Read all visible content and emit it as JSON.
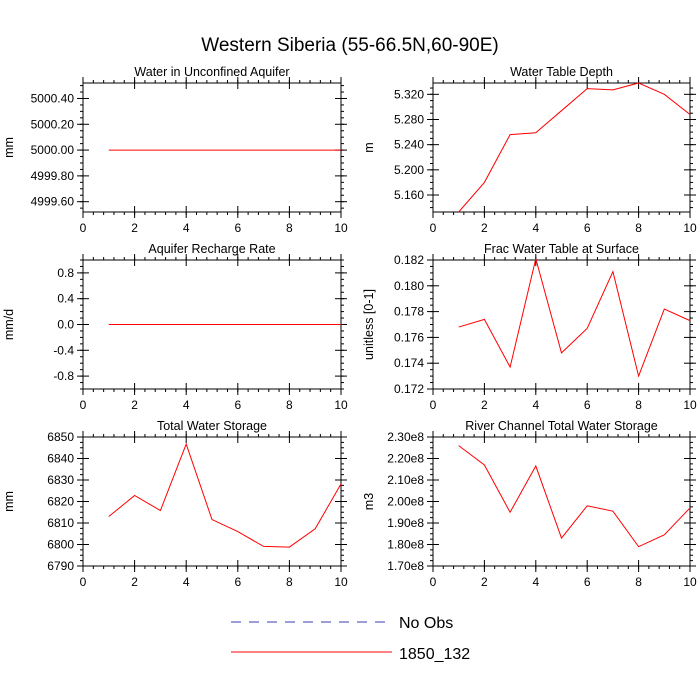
{
  "title": "Western Siberia (55-66.5N,60-90E)",
  "colors": {
    "series": "#ff0000",
    "obs": "#3b3bb0",
    "axis": "#000000"
  },
  "legend": [
    {
      "label": "No Obs",
      "style": "dashed",
      "color": "#3b3bb0"
    },
    {
      "label": "1850_132",
      "style": "solid",
      "color": "#ff0000"
    }
  ],
  "chart_data": [
    {
      "type": "line",
      "title": "Water in Unconfined Aquifer",
      "ylabel": "mm",
      "x": [
        1,
        2,
        3,
        4,
        5,
        6,
        7,
        8,
        9,
        10
      ],
      "series": [
        {
          "name": "1850_132",
          "values": [
            5000,
            5000,
            5000,
            5000,
            5000,
            5000,
            5000,
            5000,
            5000,
            5000
          ]
        }
      ],
      "xlim": [
        0,
        10
      ],
      "ylim": [
        4999.52,
        5000.52
      ],
      "xticks": [
        0,
        2,
        4,
        6,
        8,
        10
      ],
      "xticklabels": [
        "0",
        "2",
        "4",
        "6",
        "8",
        "10"
      ],
      "yticks": [
        4999.6,
        4999.8,
        5000.0,
        5000.2,
        5000.4
      ],
      "yticklabels": [
        "4999.60",
        "4999.80",
        "5000.00",
        "5000.20",
        "5000.40"
      ],
      "grid": false
    },
    {
      "type": "line",
      "title": "Water Table Depth",
      "ylabel": "m",
      "x": [
        1,
        2,
        3,
        4,
        5,
        6,
        7,
        8,
        9,
        10
      ],
      "series": [
        {
          "name": "1850_132",
          "values": [
            5.133,
            5.18,
            5.256,
            5.259,
            5.294,
            5.329,
            5.327,
            5.338,
            5.32,
            5.288
          ]
        }
      ],
      "xlim": [
        0,
        10
      ],
      "ylim": [
        5.133,
        5.338
      ],
      "xticks": [
        0,
        2,
        4,
        6,
        8,
        10
      ],
      "xticklabels": [
        "0",
        "2",
        "4",
        "6",
        "8",
        "10"
      ],
      "yticks": [
        5.16,
        5.2,
        5.24,
        5.28,
        5.32
      ],
      "yticklabels": [
        "5.160",
        "5.200",
        "5.240",
        "5.280",
        "5.320"
      ],
      "grid": false
    },
    {
      "type": "line",
      "title": "Aquifer Recharge Rate",
      "ylabel": "mm/d",
      "x": [
        1,
        2,
        3,
        4,
        5,
        6,
        7,
        8,
        9,
        10
      ],
      "series": [
        {
          "name": "1850_132",
          "values": [
            0,
            0,
            0,
            0,
            0,
            0,
            0,
            0,
            0,
            0
          ]
        }
      ],
      "xlim": [
        0,
        10
      ],
      "ylim": [
        -1,
        1
      ],
      "xticks": [
        0,
        2,
        4,
        6,
        8,
        10
      ],
      "xticklabels": [
        "0",
        "2",
        "4",
        "6",
        "8",
        "10"
      ],
      "yticks": [
        -0.8,
        -0.4,
        0,
        0.4,
        0.8
      ],
      "yticklabels": [
        "-0.8",
        "-0.4",
        "0.0",
        "0.4",
        "0.8"
      ],
      "grid": false
    },
    {
      "type": "line",
      "title": "Frac Water Table at Surface",
      "ylabel": "unitless [0-1]",
      "x": [
        1,
        2,
        3,
        4,
        5,
        6,
        7,
        8,
        9,
        10
      ],
      "series": [
        {
          "name": "1850_132",
          "values": [
            0.1768,
            0.1774,
            0.1737,
            0.1821,
            0.1748,
            0.1767,
            0.1811,
            0.173,
            0.1782,
            0.1773
          ]
        }
      ],
      "xlim": [
        0,
        10
      ],
      "ylim": [
        0.172,
        0.182
      ],
      "xticks": [
        0,
        2,
        4,
        6,
        8,
        10
      ],
      "xticklabels": [
        "0",
        "2",
        "4",
        "6",
        "8",
        "10"
      ],
      "yticks": [
        0.172,
        0.174,
        0.176,
        0.178,
        0.18,
        0.182
      ],
      "yticklabels": [
        "0.172",
        "0.174",
        "0.176",
        "0.178",
        "0.180",
        "0.182"
      ],
      "grid": false
    },
    {
      "type": "line",
      "title": "Total Water Storage",
      "ylabel": "mm",
      "x": [
        1,
        2,
        3,
        4,
        5,
        6,
        7,
        8,
        9,
        10
      ],
      "series": [
        {
          "name": "1850_132",
          "values": [
            6813.0,
            6822.8,
            6815.8,
            6846.7,
            6811.6,
            6806.0,
            6799.1,
            6798.8,
            6807.3,
            6828.2
          ]
        }
      ],
      "xlim": [
        0,
        10
      ],
      "ylim": [
        6790,
        6850
      ],
      "xticks": [
        0,
        2,
        4,
        6,
        8,
        10
      ],
      "xticklabels": [
        "0",
        "2",
        "4",
        "6",
        "8",
        "10"
      ],
      "yticks": [
        6790,
        6800,
        6810,
        6820,
        6830,
        6840,
        6850
      ],
      "yticklabels": [
        "6790",
        "6800",
        "6810",
        "6820",
        "6830",
        "6840",
        "6850"
      ],
      "grid": false
    },
    {
      "type": "line",
      "title": "River Channel Total Water Storage",
      "ylabel": "m3",
      "x": [
        1,
        2,
        3,
        4,
        5,
        6,
        7,
        8,
        9,
        10
      ],
      "series": [
        {
          "name": "1850_132",
          "values": [
            226000000.0,
            217000000.0,
            195000000.0,
            216500000.0,
            183000000.0,
            198000000.0,
            195500000.0,
            179000000.0,
            184500000.0,
            197000000.0
          ]
        }
      ],
      "xlim": [
        0,
        10
      ],
      "ylim": [
        170000000.0,
        230000000.0
      ],
      "xticks": [
        0,
        2,
        4,
        6,
        8,
        10
      ],
      "xticklabels": [
        "0",
        "2",
        "4",
        "6",
        "8",
        "10"
      ],
      "yticks": [
        170000000.0,
        180000000.0,
        190000000.0,
        200000000.0,
        210000000.0,
        220000000.0,
        230000000.0
      ],
      "yticklabels": [
        "1.70e8",
        "1.80e8",
        "1.90e8",
        "2.00e8",
        "2.10e8",
        "2.20e8",
        "2.30e8"
      ],
      "grid": false
    }
  ]
}
